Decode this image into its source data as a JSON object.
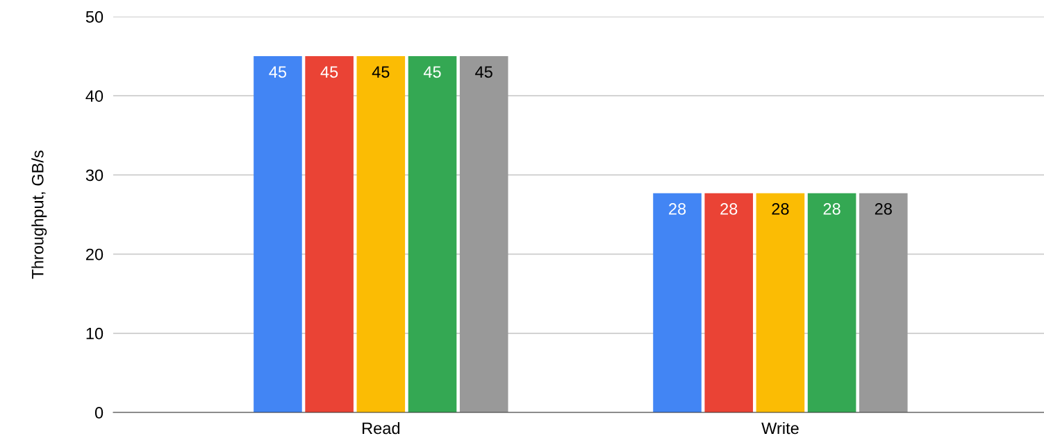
{
  "chart_data": {
    "type": "bar",
    "ylabel": "Throughput, GB/s",
    "categories": [
      "Read",
      "Write"
    ],
    "series": [
      {
        "color": "#4285f4",
        "values": [
          45,
          27.7
        ],
        "value_labels": [
          "45",
          "28"
        ]
      },
      {
        "color": "#ea4335",
        "values": [
          45,
          27.7
        ],
        "value_labels": [
          "45",
          "28"
        ]
      },
      {
        "color": "#fbbc04",
        "values": [
          45,
          27.7
        ],
        "value_labels": [
          "45",
          "28"
        ]
      },
      {
        "color": "#34a853",
        "values": [
          45,
          27.7
        ],
        "value_labels": [
          "45",
          "28"
        ]
      },
      {
        "color": "#999999",
        "values": [
          45,
          27.7
        ],
        "value_labels": [
          "45",
          "28"
        ]
      }
    ],
    "ylim": [
      0,
      50
    ],
    "yticks": [
      0,
      10,
      20,
      30,
      40,
      50
    ],
    "grid": "y",
    "legend": false
  }
}
